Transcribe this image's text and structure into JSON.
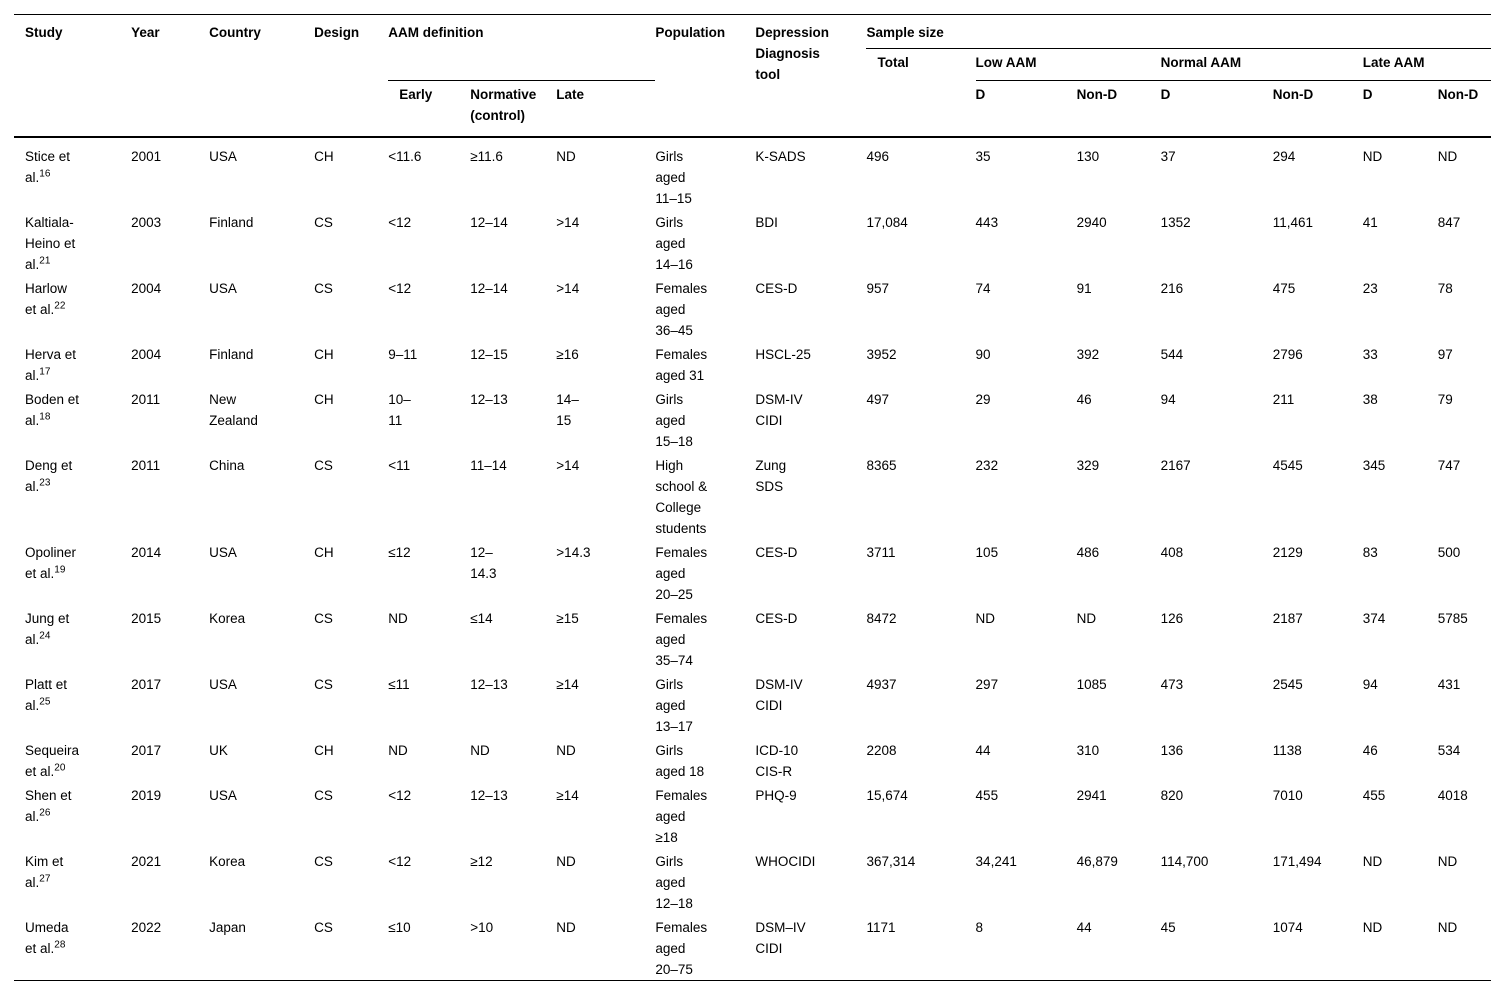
{
  "table": {
    "header": {
      "study": "Study",
      "year": "Year",
      "country": "Country",
      "design": "Design",
      "aam_definition": "AAM definition",
      "early": "Early",
      "normative": "Normative\n(control)",
      "late": "Late",
      "population": "Population",
      "tool": "Depression\nDiagnosis\ntool",
      "sample_size": "Sample size",
      "total": "Total",
      "low_aam": "Low AAM",
      "normal_aam": "Normal AAM",
      "late_aam": "Late AAM",
      "d": "D",
      "non_d": "Non-D"
    },
    "rows": [
      {
        "study": "Stice et\nal.",
        "ref": "16",
        "year": "2001",
        "country": "USA",
        "design": "CH",
        "early": "<11.6",
        "normative": "≥11.6",
        "late": "ND",
        "population": "Girls\naged\n11–15",
        "tool": "K-SADS",
        "total": "496",
        "low_d": "35",
        "low_nond": "130",
        "normal_d": "37",
        "normal_nond": "294",
        "late_d": "ND",
        "late_nond": "ND"
      },
      {
        "study": "Kaltiala-\nHeino et\nal.",
        "ref": "21",
        "year": "2003",
        "country": "Finland",
        "design": "CS",
        "early": "<12",
        "normative": "12–14",
        "late": ">14",
        "population": "Girls\naged\n14–16",
        "tool": "BDI",
        "total": "17,084",
        "low_d": "443",
        "low_nond": "2940",
        "normal_d": "1352",
        "normal_nond": "11,461",
        "late_d": "41",
        "late_nond": "847"
      },
      {
        "study": "Harlow\net al.",
        "ref": "22",
        "year": "2004",
        "country": "USA",
        "design": "CS",
        "early": "<12",
        "normative": "12–14",
        "late": ">14",
        "population": "Females\naged\n36–45",
        "tool": "CES-D",
        "total": "957",
        "low_d": "74",
        "low_nond": "91",
        "normal_d": "216",
        "normal_nond": "475",
        "late_d": "23",
        "late_nond": "78"
      },
      {
        "study": "Herva et\nal.",
        "ref": "17",
        "year": "2004",
        "country": "Finland",
        "design": "CH",
        "early": "9–11",
        "normative": "12–15",
        "late": "≥16",
        "population": "Females\naged 31",
        "tool": "HSCL-25",
        "total": "3952",
        "low_d": "90",
        "low_nond": "392",
        "normal_d": "544",
        "normal_nond": "2796",
        "late_d": "33",
        "late_nond": "97"
      },
      {
        "study": "Boden et\nal.",
        "ref": "18",
        "year": "2011",
        "country": "New\nZealand",
        "design": "CH",
        "early": "10–\n11",
        "normative": "12–13",
        "late": "14–\n15",
        "population": "Girls\naged\n15–18",
        "tool": "DSM-IV\nCIDI",
        "total": "497",
        "low_d": "29",
        "low_nond": "46",
        "normal_d": "94",
        "normal_nond": "211",
        "late_d": "38",
        "late_nond": "79"
      },
      {
        "study": "Deng et\nal.",
        "ref": "23",
        "year": "2011",
        "country": "China",
        "design": "CS",
        "early": "<11",
        "normative": "11–14",
        "late": ">14",
        "population": "High\nschool &\nCollege\nstudents",
        "tool": "Zung\nSDS",
        "total": "8365",
        "low_d": "232",
        "low_nond": "329",
        "normal_d": "2167",
        "normal_nond": "4545",
        "late_d": "345",
        "late_nond": "747"
      },
      {
        "study": "Opoliner\net al.",
        "ref": "19",
        "year": "2014",
        "country": "USA",
        "design": "CH",
        "early": "≤12",
        "normative": "12–\n14.3",
        "late": ">14.3",
        "population": "Females\naged\n20–25",
        "tool": "CES-D",
        "total": "3711",
        "low_d": "105",
        "low_nond": "486",
        "normal_d": "408",
        "normal_nond": "2129",
        "late_d": "83",
        "late_nond": "500"
      },
      {
        "study": "Jung et\nal.",
        "ref": "24",
        "year": "2015",
        "country": "Korea",
        "design": "CS",
        "early": "ND",
        "normative": "≤14",
        "late": "≥15",
        "population": "Females\naged\n35–74",
        "tool": "CES-D",
        "total": "8472",
        "low_d": "ND",
        "low_nond": "ND",
        "normal_d": "126",
        "normal_nond": "2187",
        "late_d": "374",
        "late_nond": "5785"
      },
      {
        "study": "Platt et\nal.",
        "ref": "25",
        "year": "2017",
        "country": "USA",
        "design": "CS",
        "early": "≤11",
        "normative": "12–13",
        "late": "≥14",
        "population": "Girls\naged\n13–17",
        "tool": "DSM-IV\nCIDI",
        "total": "4937",
        "low_d": "297",
        "low_nond": "1085",
        "normal_d": "473",
        "normal_nond": "2545",
        "late_d": "94",
        "late_nond": "431"
      },
      {
        "study": "Sequeira\net al.",
        "ref": "20",
        "year": "2017",
        "country": "UK",
        "design": "CH",
        "early": "ND",
        "normative": "ND",
        "late": "ND",
        "population": "Girls\naged 18",
        "tool": "ICD-10\nCIS-R",
        "total": "2208",
        "low_d": "44",
        "low_nond": "310",
        "normal_d": "136",
        "normal_nond": "1138",
        "late_d": "46",
        "late_nond": "534"
      },
      {
        "study": "Shen et\nal.",
        "ref": "26",
        "year": "2019",
        "country": "USA",
        "design": "CS",
        "early": "<12",
        "normative": "12–13",
        "late": "≥14",
        "population": "Females\naged\n≥18",
        "tool": "PHQ-9",
        "total": "15,674",
        "low_d": "455",
        "low_nond": "2941",
        "normal_d": "820",
        "normal_nond": "7010",
        "late_d": "455",
        "late_nond": "4018"
      },
      {
        "study": "Kim et\nal.",
        "ref": "27",
        "year": "2021",
        "country": "Korea",
        "design": "CS",
        "early": "<12",
        "normative": "≥12",
        "late": "ND",
        "population": "Girls\naged\n12–18",
        "tool": "WHOCIDI",
        "total": "367,314",
        "low_d": "34,241",
        "low_nond": "46,879",
        "normal_d": "114,700",
        "normal_nond": "171,494",
        "late_d": "ND",
        "late_nond": "ND"
      },
      {
        "study": "Umeda\net al.",
        "ref": "28",
        "year": "2022",
        "country": "Japan",
        "design": "CS",
        "early": "≤10",
        "normative": ">10",
        "late": "ND",
        "population": "Females\naged\n20–75",
        "tool": "DSM–IV\nCIDI",
        "total": "1171",
        "low_d": "8",
        "low_nond": "44",
        "normal_d": "45",
        "normal_nond": "1074",
        "late_d": "ND",
        "late_nond": "ND"
      }
    ]
  }
}
